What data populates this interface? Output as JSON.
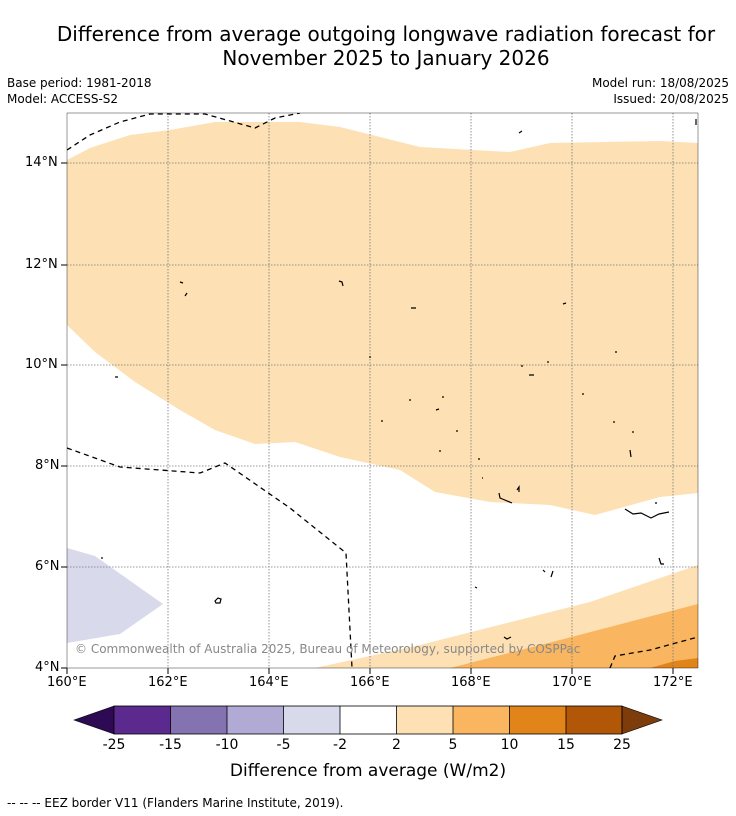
{
  "title_line1": "Difference from average outgoing longwave radiation forecast for",
  "title_line2": "November 2025 to January 2026",
  "meta": {
    "base_period": "Base period: 1981-2018",
    "model": "Model: ACCESS-S2",
    "model_run": "Model run: 18/08/2025",
    "issued": "Issued: 20/08/2025"
  },
  "map": {
    "lon_ticks": [
      "160°E",
      "162°E",
      "164°E",
      "166°E",
      "168°E",
      "170°E",
      "172°E"
    ],
    "lat_ticks": [
      "14°N",
      "12°N",
      "10°N",
      "8°N",
      "6°N",
      "4°N"
    ],
    "copyright": "© Commonwealth of Australia 2025, Bureau of Meteorology, supported by COSPPac"
  },
  "colorbar": {
    "labels": [
      "-25",
      "-15",
      "-10",
      "-5",
      "-2",
      "2",
      "5",
      "10",
      "15",
      "25"
    ],
    "colors": [
      "#2d0a53",
      "#5c2a8e",
      "#8473b0",
      "#b1aad4",
      "#d9d9ec",
      "#ffffff",
      "#fde0b4",
      "#f9b55f",
      "#e18419",
      "#b25708",
      "#7d3c0c"
    ],
    "title": "Difference from average (W/m2)"
  },
  "footnote": "--  --  -- EEZ border V11 (Flanders Marine Institute, 2019)."
}
